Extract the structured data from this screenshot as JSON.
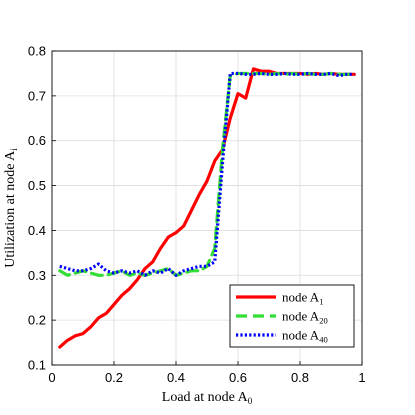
{
  "chart_data": {
    "type": "line",
    "xlabel": "Load at node A",
    "xlabel_sub": "0",
    "ylabel": "Utilization at node A",
    "ylabel_sub": "i",
    "xlim": [
      0,
      1
    ],
    "ylim": [
      0.1,
      0.8
    ],
    "xticks": [
      "0",
      "0.2",
      "0.4",
      "0.6",
      "0.8",
      "1"
    ],
    "xtick_values": [
      0,
      0.2,
      0.4,
      0.6,
      0.8,
      1.0
    ],
    "yticks": [
      "0.1",
      "0.2",
      "0.3",
      "0.4",
      "0.5",
      "0.6",
      "0.7",
      "0.8"
    ],
    "ytick_values": [
      0.1,
      0.2,
      0.3,
      0.4,
      0.5,
      0.6,
      0.7,
      0.8
    ],
    "grid": true,
    "legend_position": "bottom-right",
    "series": [
      {
        "name": "node A",
        "name_sub": "1",
        "color": "#ff0000",
        "style": "solid",
        "x": [
          0.025,
          0.05,
          0.075,
          0.1,
          0.125,
          0.15,
          0.175,
          0.2,
          0.225,
          0.25,
          0.275,
          0.3,
          0.325,
          0.35,
          0.375,
          0.4,
          0.425,
          0.45,
          0.475,
          0.5,
          0.525,
          0.55,
          0.575,
          0.6,
          0.625,
          0.65,
          0.675,
          0.7,
          0.725,
          0.75,
          0.775,
          0.8,
          0.825,
          0.85,
          0.875,
          0.9,
          0.925,
          0.95,
          0.975
        ],
        "y": [
          0.14,
          0.155,
          0.165,
          0.17,
          0.185,
          0.205,
          0.215,
          0.235,
          0.255,
          0.27,
          0.29,
          0.315,
          0.33,
          0.36,
          0.385,
          0.395,
          0.41,
          0.445,
          0.48,
          0.51,
          0.555,
          0.58,
          0.65,
          0.705,
          0.695,
          0.76,
          0.755,
          0.755,
          0.75,
          0.75,
          0.75,
          0.75,
          0.748,
          0.75,
          0.748,
          0.75,
          0.748,
          0.748,
          0.748
        ]
      },
      {
        "name": "node A",
        "name_sub": "20",
        "color": "#33dd33",
        "style": "dashed",
        "x": [
          0.025,
          0.05,
          0.075,
          0.1,
          0.125,
          0.15,
          0.175,
          0.2,
          0.225,
          0.25,
          0.275,
          0.3,
          0.325,
          0.35,
          0.375,
          0.4,
          0.425,
          0.45,
          0.475,
          0.5,
          0.525,
          0.55,
          0.575,
          0.6,
          0.625,
          0.65,
          0.675,
          0.7,
          0.725,
          0.75,
          0.775,
          0.8,
          0.825,
          0.85,
          0.875,
          0.9,
          0.925,
          0.95,
          0.975
        ],
        "y": [
          0.31,
          0.3,
          0.305,
          0.31,
          0.305,
          0.3,
          0.3,
          0.305,
          0.31,
          0.3,
          0.305,
          0.3,
          0.305,
          0.31,
          0.315,
          0.3,
          0.305,
          0.31,
          0.31,
          0.32,
          0.36,
          0.58,
          0.745,
          0.75,
          0.75,
          0.75,
          0.75,
          0.748,
          0.75,
          0.748,
          0.75,
          0.748,
          0.75,
          0.748,
          0.748,
          0.75,
          0.748,
          0.748,
          0.748
        ]
      },
      {
        "name": "node A",
        "name_sub": "40",
        "color": "#0000ff",
        "style": "dotted",
        "x": [
          0.025,
          0.05,
          0.075,
          0.1,
          0.125,
          0.15,
          0.175,
          0.2,
          0.225,
          0.25,
          0.275,
          0.3,
          0.325,
          0.35,
          0.375,
          0.4,
          0.425,
          0.45,
          0.475,
          0.5,
          0.525,
          0.55,
          0.575,
          0.6,
          0.625,
          0.65,
          0.675,
          0.7,
          0.725,
          0.75,
          0.775,
          0.8,
          0.825,
          0.85,
          0.875,
          0.9,
          0.925,
          0.95,
          0.975
        ],
        "y": [
          0.32,
          0.315,
          0.31,
          0.31,
          0.315,
          0.325,
          0.31,
          0.305,
          0.31,
          0.305,
          0.31,
          0.3,
          0.31,
          0.305,
          0.315,
          0.3,
          0.31,
          0.315,
          0.32,
          0.32,
          0.33,
          0.55,
          0.75,
          0.75,
          0.748,
          0.748,
          0.75,
          0.748,
          0.748,
          0.75,
          0.748,
          0.748,
          0.75,
          0.748,
          0.748,
          0.75,
          0.745,
          0.748,
          0.748
        ]
      }
    ]
  }
}
